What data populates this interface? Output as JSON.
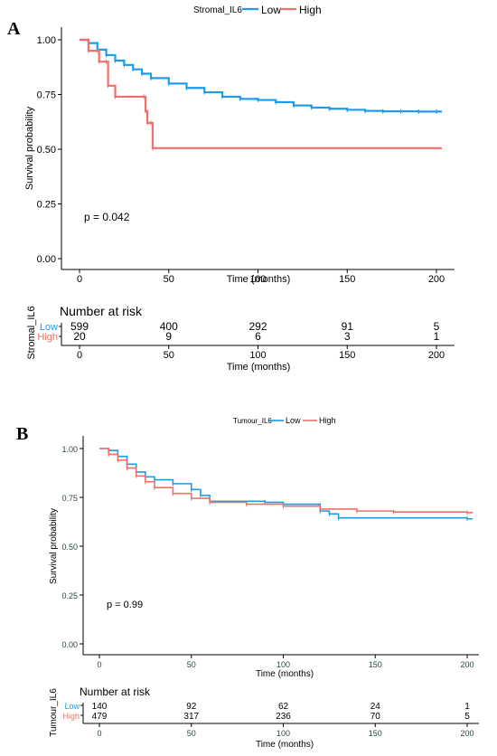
{
  "chart_data": [
    {
      "type": "line",
      "panel_label": "A",
      "legend_title": "Stromal_IL6",
      "legend_position": "top",
      "xlabel": "Time (months)",
      "ylabel": "Survival probability",
      "xlim": [
        0,
        205
      ],
      "ylim": [
        0,
        1
      ],
      "x_ticks": [
        "0",
        "50",
        "100",
        "150",
        "200"
      ],
      "y_ticks": [
        "0.00",
        "0.25",
        "0.50",
        "0.75",
        "1.00"
      ],
      "annotation": "p = 0.042",
      "grid": false,
      "series": [
        {
          "name": "Low",
          "color": "#1e9be9",
          "x": [
            0,
            5,
            10,
            15,
            20,
            25,
            30,
            35,
            40,
            50,
            60,
            70,
            80,
            90,
            100,
            110,
            120,
            130,
            140,
            150,
            160,
            170,
            180,
            190,
            200,
            203
          ],
          "y": [
            1.0,
            0.985,
            0.955,
            0.93,
            0.905,
            0.885,
            0.865,
            0.845,
            0.825,
            0.8,
            0.78,
            0.76,
            0.74,
            0.73,
            0.725,
            0.715,
            0.7,
            0.69,
            0.685,
            0.68,
            0.675,
            0.673,
            0.673,
            0.672,
            0.672,
            0.672
          ]
        },
        {
          "name": "High",
          "color": "#f07068",
          "x": [
            0,
            5,
            10,
            11,
            15,
            16,
            20,
            36,
            37,
            38,
            40,
            41,
            203
          ],
          "y": [
            1.0,
            0.95,
            0.95,
            0.9,
            0.9,
            0.79,
            0.74,
            0.74,
            0.675,
            0.62,
            0.62,
            0.505,
            0.505
          ]
        }
      ],
      "risk_table": {
        "title": "Number at risk",
        "strata_label": "Stromal_IL6",
        "xlabel": "Time (months)",
        "times": [
          "0",
          "50",
          "100",
          "150",
          "200"
        ],
        "rows": [
          {
            "name": "Low",
            "color": "#1e9be9",
            "values": [
              "599",
              "400",
              "292",
              "91",
              "5"
            ]
          },
          {
            "name": "High",
            "color": "#f07068",
            "values": [
              "20",
              "9",
              "6",
              "3",
              "1"
            ]
          }
        ]
      }
    },
    {
      "type": "line",
      "panel_label": "B",
      "legend_title": "Tumour_IL6",
      "legend_position": "top",
      "xlabel": "Time (months)",
      "ylabel": "Survival probability",
      "xlim": [
        0,
        205
      ],
      "ylim": [
        0,
        1
      ],
      "x_ticks": [
        "0",
        "50",
        "100",
        "150",
        "200"
      ],
      "y_ticks": [
        "0.00",
        "0.25",
        "0.50",
        "0.75",
        "1.00"
      ],
      "annotation": "p = 0.99",
      "grid": false,
      "series": [
        {
          "name": "Low",
          "color": "#1e9be9",
          "x": [
            0,
            5,
            10,
            15,
            20,
            25,
            30,
            40,
            50,
            55,
            60,
            90,
            100,
            120,
            125,
            130,
            200,
            203
          ],
          "y": [
            1.0,
            0.99,
            0.96,
            0.92,
            0.88,
            0.855,
            0.84,
            0.82,
            0.79,
            0.76,
            0.73,
            0.725,
            0.715,
            0.68,
            0.665,
            0.645,
            0.64,
            0.64
          ]
        },
        {
          "name": "High",
          "color": "#f07068",
          "x": [
            0,
            5,
            10,
            15,
            20,
            25,
            30,
            40,
            50,
            60,
            80,
            100,
            120,
            140,
            160,
            200,
            203
          ],
          "y": [
            1.0,
            0.97,
            0.94,
            0.9,
            0.86,
            0.83,
            0.8,
            0.77,
            0.745,
            0.725,
            0.715,
            0.705,
            0.69,
            0.68,
            0.675,
            0.672,
            0.672
          ]
        }
      ],
      "risk_table": {
        "title": "Number at risk",
        "strata_label": "Tumour_IL6",
        "xlabel": "Time (months)",
        "times": [
          "0",
          "50",
          "100",
          "150",
          "200"
        ],
        "rows": [
          {
            "name": "Low",
            "color": "#1e9be9",
            "values": [
              "140",
              "92",
              "62",
              "24",
              "1"
            ]
          },
          {
            "name": "High",
            "color": "#f07068",
            "values": [
              "479",
              "317",
              "236",
              "70",
              "5"
            ]
          }
        ]
      }
    }
  ]
}
